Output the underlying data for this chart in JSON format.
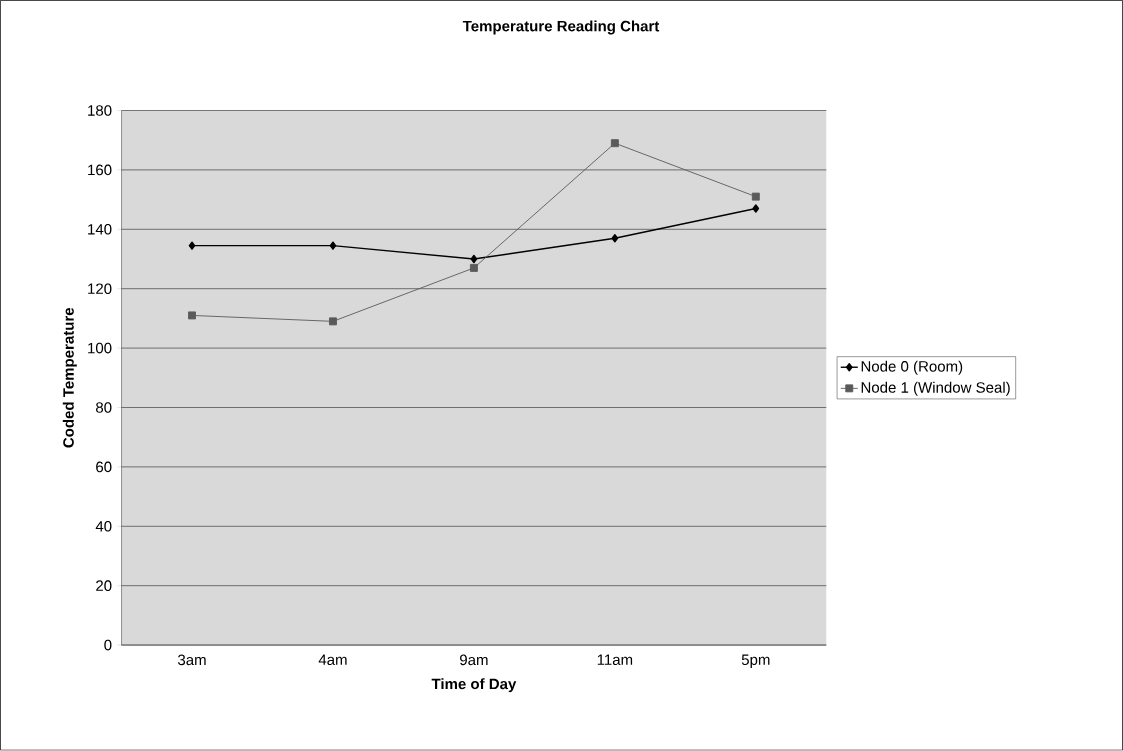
{
  "chart_data": {
    "type": "line",
    "title": "Temperature Reading Chart",
    "xlabel": "Time of Day",
    "ylabel": "Coded Temperature",
    "categories": [
      "3am",
      "4am",
      "9am",
      "11am",
      "5pm"
    ],
    "series": [
      {
        "name": "Node 0 (Room)",
        "color": "#000000",
        "marker": "diamond",
        "values": [
          134.5,
          134.5,
          130,
          137,
          147
        ]
      },
      {
        "name": "Node 1 (Window Seal)",
        "color": "#5a5a5a",
        "marker": "square",
        "values": [
          111,
          109,
          127,
          169,
          151
        ]
      }
    ],
    "ylim": [
      0,
      180
    ],
    "yticks": [
      0,
      20,
      40,
      60,
      80,
      100,
      120,
      140,
      160,
      180
    ],
    "grid": "y",
    "legend": "right",
    "line_style": "solid"
  }
}
